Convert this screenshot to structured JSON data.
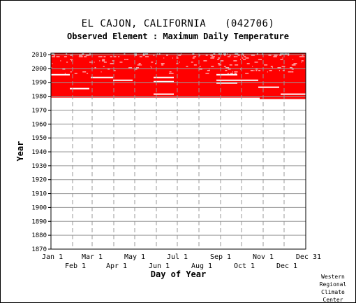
{
  "title": "EL CAJON, CALIFORNIA   (042706)",
  "subtitle": "Observed Element : Maximum Daily Temperature",
  "credit": [
    "Western",
    "Regional",
    "Climate",
    "Center"
  ],
  "colors": {
    "data": "#ff0000",
    "missing": "#ffffff",
    "grid": "#999999",
    "background": "#ffffff"
  },
  "chart_data": {
    "type": "heatmap",
    "xlabel": "Day of Year",
    "ylabel": "Year",
    "x_ticks_upper": [
      "Jan 1",
      "Mar 1",
      "May 1",
      "Jul 1",
      "Sep 1",
      "Nov 1",
      "Dec 31"
    ],
    "x_ticks_lower": [
      "Feb 1",
      "Apr 1",
      "Jun 1",
      "Aug 1",
      "Oct 1",
      "Dec 1"
    ],
    "y_ticks": [
      2010,
      2000,
      1990,
      1980,
      1970,
      1960,
      1950,
      1940,
      1930,
      1920,
      1910,
      1900,
      1890,
      1880,
      1870
    ],
    "xlim": [
      1,
      366
    ],
    "ylim": [
      1870,
      2011
    ],
    "grid": true,
    "record_start": {
      "day_of_year": 300,
      "year": 1978
    },
    "record_end_year": 2010,
    "observed_year_range": [
      1979,
      2010
    ],
    "missing_periods": [
      {
        "year": 1995,
        "days": [
          1,
          28
        ]
      },
      {
        "year": 1985,
        "days": [
          28,
          56
        ]
      },
      {
        "year": 1993,
        "days": [
          58,
          90
        ]
      },
      {
        "year": 1991,
        "days": [
          90,
          118
        ]
      },
      {
        "year": 1990,
        "days": [
          148,
          177
        ]
      },
      {
        "year": 1993,
        "days": [
          148,
          177
        ]
      },
      {
        "year": 1981,
        "days": [
          148,
          177
        ]
      },
      {
        "year": 1995,
        "days": [
          238,
          268
        ]
      },
      {
        "year": 1991,
        "days": [
          238,
          268
        ]
      },
      {
        "year": 1989,
        "days": [
          238,
          268
        ]
      },
      {
        "year": 1991,
        "days": [
          268,
          298
        ]
      },
      {
        "year": 1986,
        "days": [
          298,
          328
        ]
      },
      {
        "year": 1981,
        "days": [
          330,
          366
        ]
      }
    ]
  }
}
